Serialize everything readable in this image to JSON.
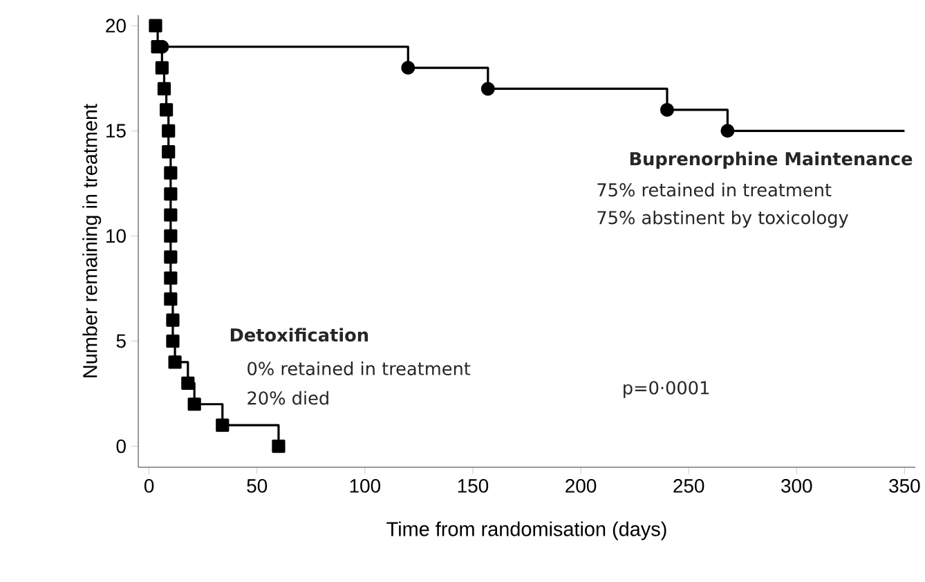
{
  "chart_data": {
    "type": "step",
    "xlabel": "Time from randomisation (days)",
    "ylabel": "Number remaining in treatment",
    "xlim": [
      -5,
      355
    ],
    "ylim": [
      -1,
      20.5
    ],
    "xticks": [
      0,
      50,
      100,
      150,
      200,
      250,
      300,
      350
    ],
    "yticks": [
      0,
      5,
      10,
      15,
      20
    ],
    "grid": false,
    "legend": false,
    "line_style": "solid",
    "series": [
      {
        "name": "Detoxification",
        "color": "#000000",
        "marker": "square",
        "x": [
          3,
          4,
          6,
          7,
          8,
          9,
          9,
          10,
          10,
          10,
          10,
          10,
          10,
          10,
          11,
          11,
          12,
          18,
          21,
          34,
          60
        ],
        "values": [
          20,
          19,
          18,
          17,
          16,
          15,
          14,
          13,
          12,
          11,
          10,
          9,
          8,
          7,
          6,
          5,
          4,
          3,
          2,
          1,
          0
        ]
      },
      {
        "name": "Buprenorphine Maintenance",
        "color": "#000000",
        "marker": "circle",
        "x": [
          6,
          120,
          157,
          240,
          268,
          350
        ],
        "values": [
          19,
          18,
          17,
          16,
          15,
          15
        ]
      }
    ],
    "annotations": [
      "75% retained in treatment",
      "75% abstinent by toxicology",
      "0% retained in treatment",
      "20% died",
      "p=0·0001"
    ]
  }
}
